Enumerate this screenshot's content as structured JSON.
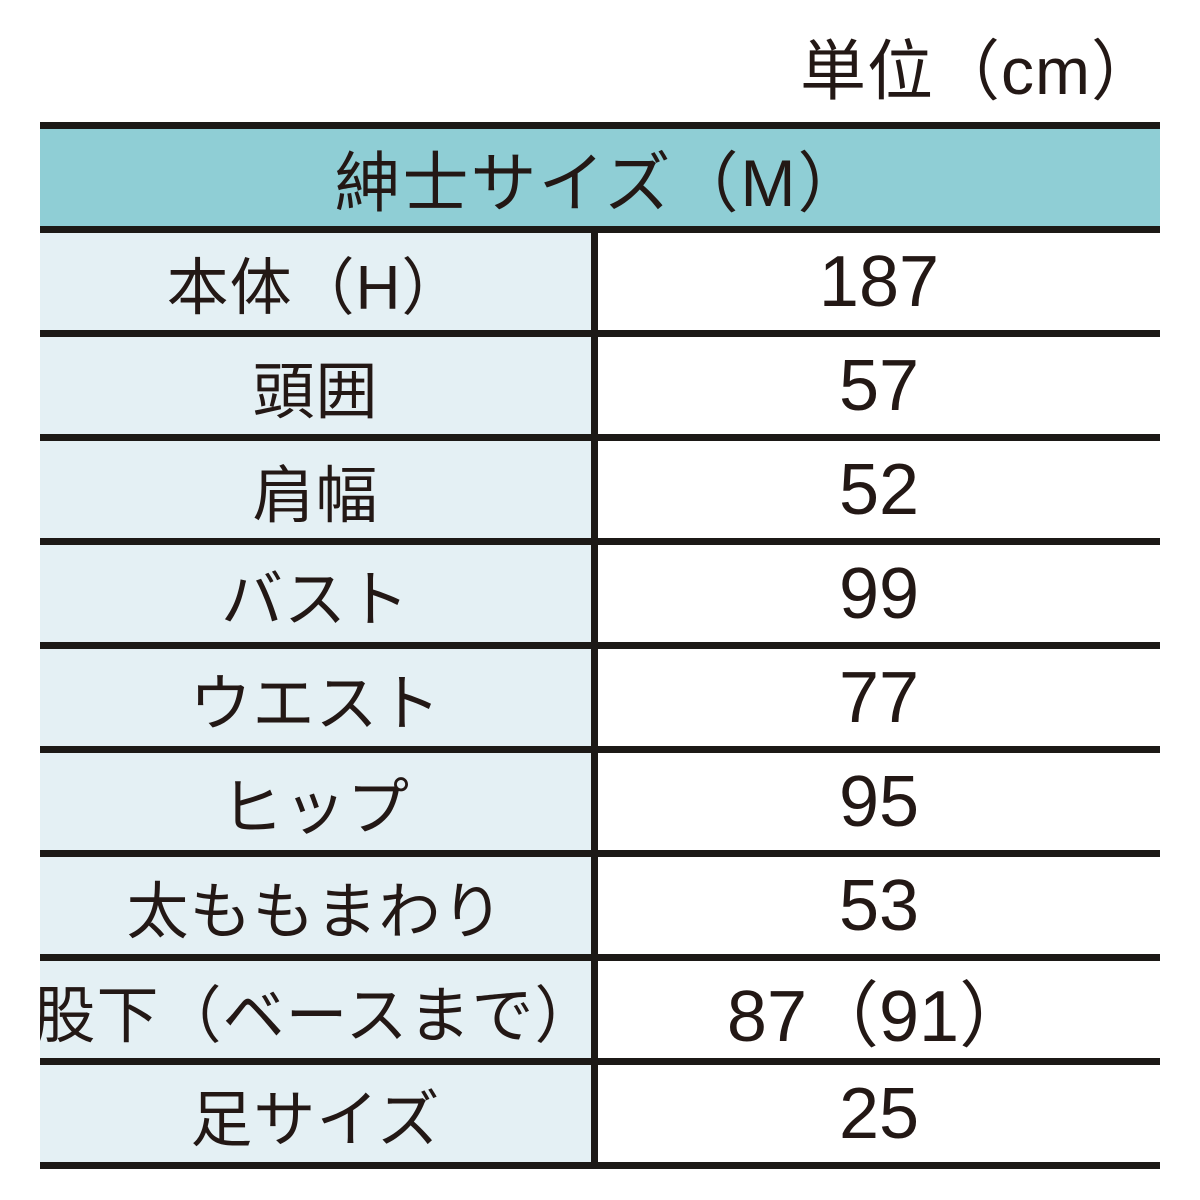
{
  "unit_label": "単位（cm）",
  "table": {
    "header": "紳士サイズ（M）",
    "rows": [
      {
        "label": "本体（H）",
        "value": "187"
      },
      {
        "label": "頭囲",
        "value": "57"
      },
      {
        "label": "肩幅",
        "value": "52"
      },
      {
        "label": "バスト",
        "value": "99"
      },
      {
        "label": "ウエスト",
        "value": "77"
      },
      {
        "label": "ヒップ",
        "value": "95"
      },
      {
        "label": "太ももまわり",
        "value": "53"
      },
      {
        "label": "股下（ベースまで）",
        "value": "87（91）"
      },
      {
        "label": "足サイズ",
        "value": "25"
      }
    ]
  },
  "colors": {
    "header_background": "#8FCED5",
    "label_background": "#E4F0F4",
    "value_background": "#FFFFFF",
    "border": "#1C1916",
    "text": "#231815"
  }
}
